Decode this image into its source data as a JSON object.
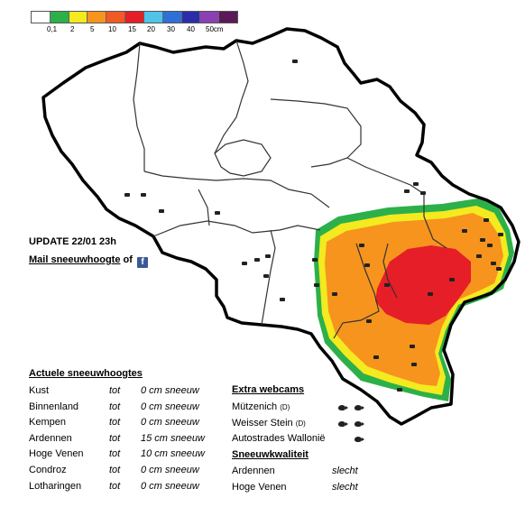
{
  "legend": {
    "colors": [
      "#ffffff",
      "#2db04a",
      "#f3ea1f",
      "#f7941d",
      "#f15a24",
      "#e61e27",
      "#4fc3e8",
      "#2f6fd6",
      "#2b2ea8",
      "#8a3fb3",
      "#5a1a5a"
    ],
    "labels": [
      "0,1",
      "2",
      "5",
      "10",
      "15",
      "20",
      "30",
      "40",
      "50cm"
    ],
    "colors_meaning": {
      "green": "#2db04a",
      "yellow": "#f3ea1f",
      "orange": "#f7941d",
      "red": "#e61e27"
    }
  },
  "update_text": "UPDATE 22/01 23h",
  "mail_link": "Mail sneeuwhoogte",
  "mail_suffix": "of",
  "facebook_icon": "f",
  "current_heights": {
    "title": "Actuele sneeuwhoogtes",
    "rows": [
      {
        "region": "Kust",
        "tot": "tot",
        "value": "0 cm sneeuw"
      },
      {
        "region": "Binnenland",
        "tot": "tot",
        "value": "0 cm sneeuw"
      },
      {
        "region": "Kempen",
        "tot": "tot",
        "value": "0 cm sneeuw"
      },
      {
        "region": "Ardennen",
        "tot": "tot",
        "value": "15 cm sneeuw"
      },
      {
        "region": "Hoge Venen",
        "tot": "tot",
        "value": "10 cm sneeuw"
      },
      {
        "region": "Condroz",
        "tot": "tot",
        "value": "0 cm sneeuw"
      },
      {
        "region": "Lotharingen",
        "tot": "tot",
        "value": "0 cm sneeuw"
      }
    ]
  },
  "webcams": {
    "title": "Extra webcams",
    "items": [
      {
        "name": "Mützenich",
        "suffix": "(D)"
      },
      {
        "name": "Weisser Stein",
        "suffix": "(D)"
      },
      {
        "name": "Autostrades Wallonië",
        "suffix": ""
      }
    ]
  },
  "quality": {
    "title": "Sneeuwkwaliteit",
    "rows": [
      {
        "region": "Ardennen",
        "value": "slecht"
      },
      {
        "region": "Hoge Venen",
        "value": "slecht"
      }
    ]
  }
}
